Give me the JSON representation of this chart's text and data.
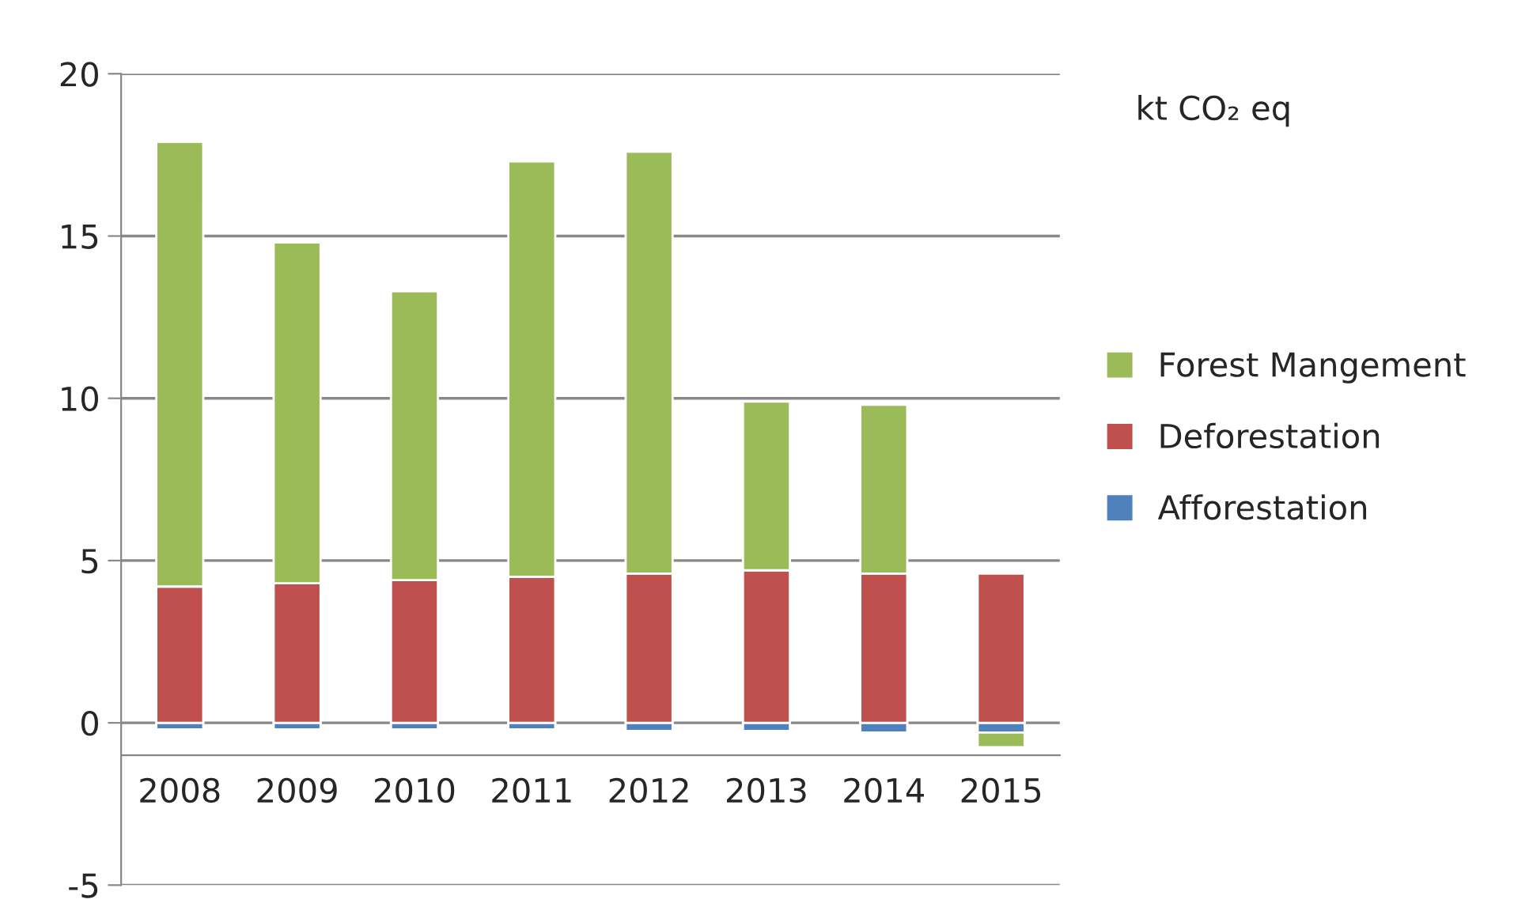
{
  "chart_data": {
    "type": "bar",
    "stacked": true,
    "categories": [
      "2008",
      "2009",
      "2010",
      "2011",
      "2012",
      "2013",
      "2014",
      "2015"
    ],
    "series": [
      {
        "name": "Afforestation",
        "color": "#4f81bd",
        "values": [
          -0.2,
          -0.2,
          -0.2,
          -0.2,
          -0.25,
          -0.25,
          -0.3,
          -0.3
        ]
      },
      {
        "name": "Deforestation",
        "color": "#c0504d",
        "values": [
          4.2,
          4.3,
          4.4,
          4.5,
          4.6,
          4.7,
          4.6,
          4.6
        ]
      },
      {
        "name": "Forest Mangement",
        "color": "#9bbb59",
        "values": [
          13.7,
          10.5,
          8.9,
          12.8,
          13.0,
          5.2,
          5.2,
          -0.45
        ]
      }
    ],
    "ylim": [
      -5,
      20
    ],
    "yticks": [
      -5,
      0,
      5,
      10,
      15,
      20
    ],
    "grid": "y",
    "legend": "right",
    "annotations": [
      "kt CO₂ eq"
    ]
  }
}
